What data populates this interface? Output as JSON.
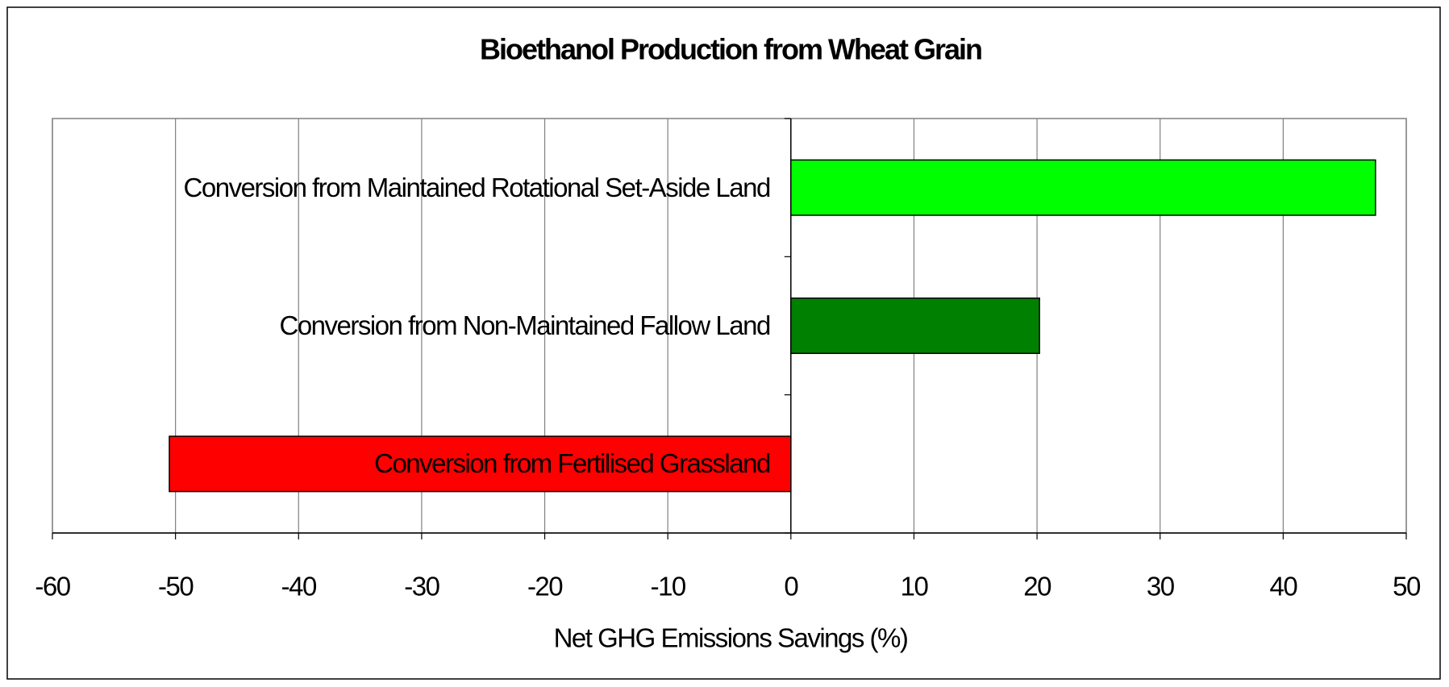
{
  "chart_data": {
    "type": "hbar",
    "title": "Bioethanol Production from Wheat Grain",
    "x_label": "Net GHG Emissions Savings (%)",
    "categories": [
      "Conversion from Maintained Rotational Set-Aside Land",
      "Conversion from Non-Maintained Fallow Land",
      "Conversion from Fertilised Grassland"
    ],
    "values": [
      47.5,
      20.2,
      -50.5
    ],
    "colors": [
      "#00ff00",
      "#008000",
      "#ff0000"
    ],
    "xlim": [
      -60,
      50
    ],
    "xticks": [
      -60,
      -50,
      -40,
      -30,
      -20,
      -10,
      0,
      10,
      20,
      30,
      40,
      50
    ],
    "grid": true
  }
}
